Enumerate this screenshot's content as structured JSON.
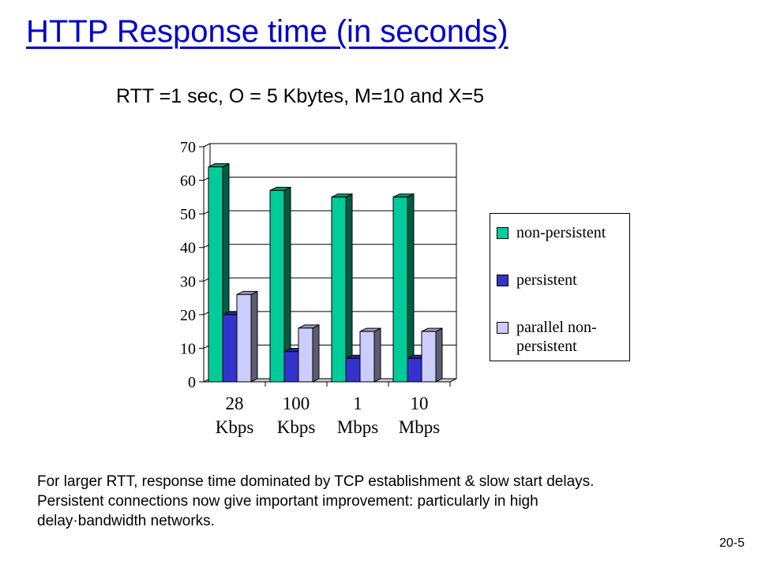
{
  "slide": {
    "title": "HTTP Response time (in seconds)",
    "subtitle": "RTT =1 sec, O = 5 Kbytes, M=10 and X=5",
    "caption_lines": [
      "For larger RTT, response time dominated by TCP establishment & slow start delays.",
      "Persistent connections now give important improvement: particularly in high",
      "delay·bandwidth networks."
    ],
    "page_number": "20-5",
    "title_color": "#0000cc"
  },
  "chart_data": {
    "type": "bar",
    "categories": [
      [
        "28",
        "Kbps"
      ],
      [
        "100",
        "Kbps"
      ],
      [
        "1",
        "Mbps"
      ],
      [
        "10",
        "Mbps"
      ]
    ],
    "series": [
      {
        "name": "non-persistent",
        "values": [
          64,
          57,
          55,
          55
        ],
        "color": "#00cc99"
      },
      {
        "name": "persistent",
        "values": [
          20,
          9,
          7,
          7
        ],
        "color": "#3333cc"
      },
      {
        "name": "parallel non-persistent",
        "values": [
          26,
          16,
          15,
          15
        ],
        "color": "#ccccff"
      }
    ],
    "ylim": [
      0,
      70
    ],
    "yticks": [
      0,
      10,
      20,
      30,
      40,
      50,
      60,
      70
    ],
    "grid": true,
    "legend_position": "right",
    "style": "3d-clustered"
  }
}
